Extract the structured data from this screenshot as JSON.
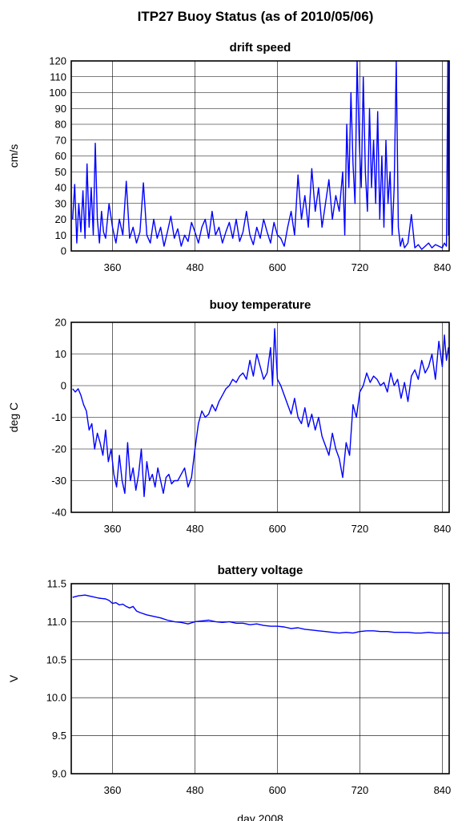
{
  "figure": {
    "title": "ITP27 Buoy Status (as of 2010/05/06)",
    "xlabel": "day 2008"
  },
  "chart_data": [
    {
      "type": "line",
      "title": "drift speed",
      "ylabel": "cm/s",
      "xlim": [
        300,
        850
      ],
      "ylim": [
        0,
        120
      ],
      "xticks": [
        360,
        480,
        600,
        720,
        840
      ],
      "yticks": [
        0,
        10,
        20,
        30,
        40,
        50,
        60,
        70,
        80,
        90,
        100,
        110,
        120
      ],
      "grid": true,
      "series": [
        {
          "color": "#0000ff",
          "x": [
            302,
            305,
            308,
            311,
            314,
            317,
            320,
            323,
            326,
            329,
            332,
            335,
            338,
            341,
            344,
            347,
            350,
            355,
            360,
            365,
            370,
            375,
            380,
            385,
            390,
            395,
            400,
            405,
            410,
            415,
            420,
            425,
            430,
            435,
            440,
            445,
            450,
            455,
            460,
            465,
            470,
            475,
            480,
            485,
            490,
            495,
            500,
            505,
            510,
            515,
            520,
            525,
            530,
            535,
            540,
            545,
            550,
            555,
            560,
            565,
            570,
            575,
            580,
            585,
            590,
            595,
            600,
            605,
            610,
            615,
            620,
            625,
            630,
            635,
            640,
            645,
            650,
            655,
            660,
            665,
            670,
            675,
            680,
            685,
            690,
            695,
            698,
            701,
            704,
            707,
            710,
            713,
            716,
            719,
            722,
            725,
            728,
            731,
            734,
            737,
            740,
            743,
            746,
            749,
            752,
            755,
            758,
            761,
            764,
            767,
            770,
            773,
            776,
            779,
            782,
            785,
            790,
            795,
            800,
            805,
            810,
            815,
            820,
            825,
            830,
            835,
            840,
            843,
            846,
            848,
            849,
            850
          ],
          "y": [
            20,
            42,
            5,
            30,
            12,
            38,
            8,
            55,
            15,
            40,
            10,
            68,
            20,
            5,
            25,
            12,
            8,
            30,
            15,
            5,
            20,
            10,
            44,
            8,
            15,
            5,
            12,
            43,
            10,
            5,
            20,
            8,
            15,
            3,
            12,
            22,
            8,
            14,
            3,
            10,
            6,
            18,
            12,
            5,
            15,
            20,
            8,
            25,
            10,
            15,
            5,
            12,
            18,
            8,
            20,
            6,
            12,
            25,
            10,
            4,
            15,
            8,
            20,
            12,
            5,
            18,
            10,
            8,
            3,
            15,
            25,
            10,
            48,
            20,
            35,
            15,
            52,
            25,
            40,
            15,
            30,
            45,
            20,
            35,
            25,
            50,
            10,
            80,
            40,
            100,
            55,
            30,
            120,
            70,
            40,
            110,
            50,
            25,
            90,
            40,
            70,
            30,
            88,
            20,
            60,
            15,
            70,
            30,
            50,
            10,
            40,
            120,
            15,
            3,
            8,
            2,
            5,
            23,
            2,
            4,
            1,
            3,
            5,
            2,
            4,
            3,
            2,
            5,
            3,
            120,
            10,
            120
          ]
        }
      ]
    },
    {
      "type": "line",
      "title": "buoy temperature",
      "ylabel": "deg C",
      "xlim": [
        300,
        850
      ],
      "ylim": [
        -40,
        20
      ],
      "xticks": [
        360,
        480,
        600,
        720,
        840
      ],
      "yticks": [
        -40,
        -30,
        -20,
        -10,
        0,
        10,
        20
      ],
      "grid": true,
      "series": [
        {
          "color": "#0000ff",
          "x": [
            302,
            306,
            310,
            314,
            318,
            322,
            326,
            330,
            334,
            338,
            342,
            346,
            350,
            354,
            358,
            362,
            366,
            370,
            374,
            378,
            382,
            386,
            390,
            394,
            398,
            402,
            406,
            410,
            414,
            418,
            422,
            426,
            430,
            434,
            438,
            442,
            446,
            450,
            455,
            460,
            465,
            470,
            475,
            480,
            485,
            490,
            495,
            500,
            505,
            510,
            515,
            520,
            525,
            530,
            535,
            540,
            545,
            550,
            555,
            560,
            565,
            570,
            575,
            580,
            585,
            590,
            593,
            596,
            600,
            605,
            610,
            615,
            620,
            625,
            630,
            635,
            640,
            645,
            650,
            655,
            660,
            665,
            670,
            675,
            680,
            685,
            690,
            695,
            700,
            705,
            710,
            715,
            720,
            725,
            730,
            735,
            740,
            745,
            750,
            755,
            760,
            765,
            770,
            775,
            780,
            785,
            790,
            795,
            800,
            805,
            810,
            815,
            820,
            825,
            830,
            835,
            840,
            843,
            846,
            849,
            850
          ],
          "y": [
            -1,
            -2,
            -1,
            -3,
            -6,
            -8,
            -14,
            -12,
            -20,
            -15,
            -18,
            -22,
            -14,
            -24,
            -20,
            -28,
            -32,
            -22,
            -30,
            -34,
            -18,
            -30,
            -26,
            -33,
            -28,
            -20,
            -35,
            -24,
            -30,
            -28,
            -32,
            -26,
            -30,
            -34,
            -29,
            -28,
            -31,
            -30,
            -30,
            -28,
            -26,
            -32,
            -29,
            -20,
            -12,
            -8,
            -10,
            -9,
            -6,
            -8,
            -5,
            -3,
            -1,
            0,
            2,
            1,
            3,
            4,
            2,
            8,
            3,
            10,
            6,
            2,
            4,
            12,
            0,
            18,
            2,
            0,
            -3,
            -6,
            -9,
            -4,
            -10,
            -12,
            -7,
            -13,
            -9,
            -14,
            -10,
            -16,
            -19,
            -22,
            -15,
            -20,
            -23,
            -29,
            -18,
            -22,
            -6,
            -10,
            -2,
            0,
            4,
            1,
            3,
            2,
            0,
            1,
            -2,
            4,
            0,
            2,
            -4,
            1,
            -5,
            3,
            5,
            2,
            8,
            4,
            6,
            10,
            2,
            14,
            6,
            16,
            8,
            12,
            10
          ]
        }
      ]
    },
    {
      "type": "line",
      "title": "battery voltage",
      "ylabel": "V",
      "xlim": [
        300,
        850
      ],
      "ylim": [
        9.0,
        11.5
      ],
      "xticks": [
        360,
        480,
        600,
        720,
        840
      ],
      "yticks": [
        "9.0",
        "9.5",
        "10.0",
        "10.5",
        "11.0",
        "11.5"
      ],
      "grid": true,
      "series": [
        {
          "color": "#0000ff",
          "x": [
            302,
            310,
            320,
            330,
            340,
            350,
            355,
            360,
            365,
            370,
            375,
            380,
            385,
            390,
            395,
            400,
            410,
            420,
            430,
            440,
            450,
            460,
            470,
            480,
            490,
            500,
            510,
            520,
            530,
            540,
            550,
            560,
            570,
            580,
            590,
            600,
            610,
            620,
            630,
            640,
            650,
            660,
            670,
            680,
            690,
            700,
            710,
            720,
            730,
            740,
            750,
            760,
            770,
            780,
            790,
            800,
            810,
            820,
            830,
            840,
            850
          ],
          "y": [
            11.32,
            11.34,
            11.35,
            11.33,
            11.31,
            11.3,
            11.28,
            11.24,
            11.25,
            11.22,
            11.23,
            11.2,
            11.18,
            11.2,
            11.14,
            11.12,
            11.09,
            11.07,
            11.05,
            11.02,
            11.0,
            10.99,
            10.97,
            11.0,
            11.01,
            11.02,
            11.0,
            10.99,
            11.0,
            10.98,
            10.98,
            10.96,
            10.97,
            10.95,
            10.94,
            10.94,
            10.93,
            10.91,
            10.92,
            10.9,
            10.89,
            10.88,
            10.87,
            10.86,
            10.85,
            10.86,
            10.85,
            10.87,
            10.88,
            10.88,
            10.87,
            10.87,
            10.86,
            10.86,
            10.86,
            10.85,
            10.85,
            10.86,
            10.85,
            10.85,
            10.85
          ]
        }
      ]
    }
  ]
}
